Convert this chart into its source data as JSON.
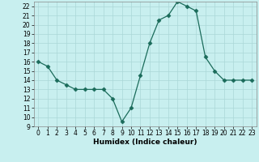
{
  "x": [
    0,
    1,
    2,
    3,
    4,
    5,
    6,
    7,
    8,
    9,
    10,
    11,
    12,
    13,
    14,
    15,
    16,
    17,
    18,
    19,
    20,
    21,
    22,
    23
  ],
  "y": [
    16,
    15.5,
    14,
    13.5,
    13,
    13,
    13,
    13,
    12,
    9.5,
    11,
    14.5,
    18,
    20.5,
    21,
    22.5,
    22,
    21.5,
    16.5,
    15,
    14,
    14,
    14,
    14
  ],
  "line_color": "#1a6b5a",
  "marker": "D",
  "marker_size": 2.5,
  "bg_color": "#c8efef",
  "grid_color": "#aad8d8",
  "xlabel": "Humidex (Indice chaleur)",
  "xlim": [
    -0.5,
    23.5
  ],
  "ylim": [
    9,
    22.5
  ],
  "yticks": [
    9,
    10,
    11,
    12,
    13,
    14,
    15,
    16,
    17,
    18,
    19,
    20,
    21,
    22
  ],
  "xticks": [
    0,
    1,
    2,
    3,
    4,
    5,
    6,
    7,
    8,
    9,
    10,
    11,
    12,
    13,
    14,
    15,
    16,
    17,
    18,
    19,
    20,
    21,
    22,
    23
  ],
  "tick_fontsize": 5.5,
  "xlabel_fontsize": 6.5
}
